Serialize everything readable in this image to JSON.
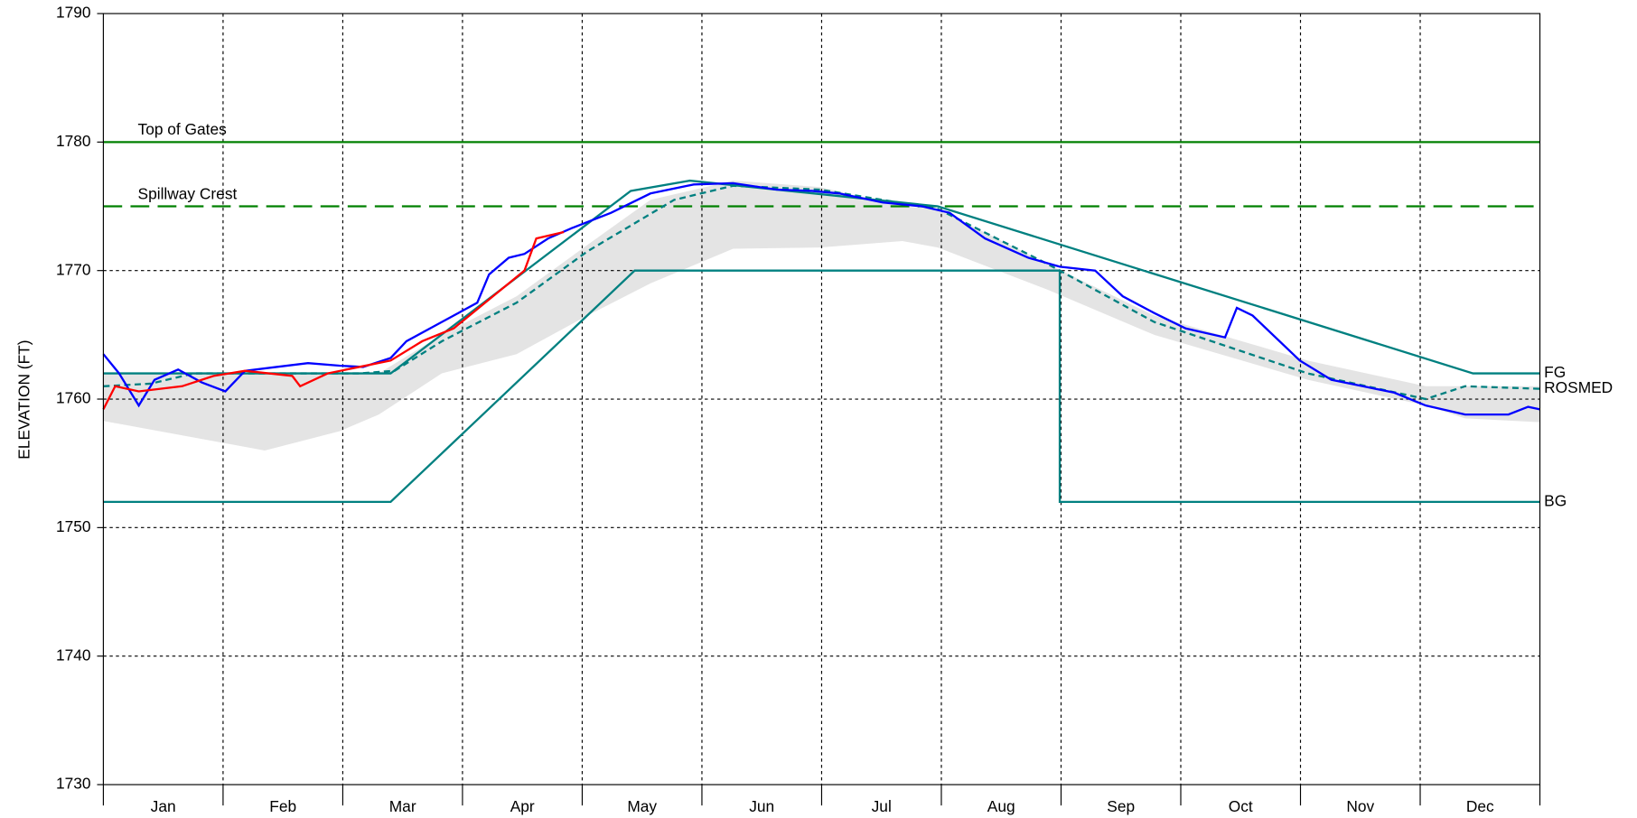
{
  "chart_data": {
    "type": "line",
    "y_label": "ELEVATION (FT)",
    "categories": [
      "Jan",
      "Feb",
      "Mar",
      "Apr",
      "May",
      "Jun",
      "Jul",
      "Aug",
      "Sep",
      "Oct",
      "Nov",
      "Dec"
    ],
    "xlim": [
      0,
      365
    ],
    "ylim": [
      1730,
      1790
    ],
    "yticks": [
      1730,
      1740,
      1750,
      1760,
      1770,
      1780,
      1790
    ],
    "grid": true,
    "reference_lines": [
      {
        "name": "Top of Gates",
        "value": 1780,
        "color": "#008000",
        "dashed": false
      },
      {
        "name": "Spillway Crest",
        "value": 1775,
        "color": "#008000",
        "dashed": true
      }
    ],
    "band": {
      "color": "#e4e4e4",
      "x": [
        0,
        41,
        60,
        70,
        86,
        105,
        123,
        139,
        160,
        182,
        203,
        212,
        240,
        267,
        306,
        336,
        346,
        365
      ],
      "upper": [
        1762,
        1762,
        1762,
        1762,
        1765,
        1768,
        1772,
        1775.5,
        1777,
        1776.5,
        1775,
        1774.8,
        1770.5,
        1766.5,
        1763,
        1761,
        1761,
        1761
      ],
      "lower": [
        1758.3,
        1756,
        1757.5,
        1758.8,
        1762,
        1763.5,
        1766.5,
        1769,
        1771.7,
        1771.8,
        1772.3,
        1771.8,
        1768.5,
        1765,
        1761.5,
        1759.5,
        1758.5,
        1758.2
      ]
    },
    "series": [
      {
        "name": "FG",
        "color": "#008080",
        "dashed": false,
        "x": [
          0,
          73,
          134,
          149,
          212,
          348,
          365
        ],
        "values": [
          1762,
          1762,
          1776.2,
          1777,
          1775,
          1762,
          1762
        ]
      },
      {
        "name": "ROSMED",
        "color": "#008080",
        "dashed": true,
        "x": [
          0,
          12,
          23,
          44,
          65,
          74,
          86,
          105,
          123,
          145,
          160,
          182,
          212,
          240,
          267,
          306,
          336,
          346,
          365
        ],
        "values": [
          1761,
          1761.2,
          1762,
          1762,
          1762,
          1762.2,
          1764.5,
          1767.5,
          1771.5,
          1775.5,
          1776.6,
          1776.3,
          1774.8,
          1770.5,
          1766,
          1762,
          1760,
          1761,
          1760.8
        ]
      },
      {
        "name": "BG",
        "color": "#008080",
        "dashed": false,
        "x": [
          0,
          73,
          135,
          243,
          243,
          365
        ],
        "values": [
          1752,
          1752,
          1770,
          1770,
          1752,
          1752
        ]
      },
      {
        "color": "#0000ff",
        "dashed": false,
        "x": [
          0,
          4,
          9,
          13,
          19,
          25,
          31,
          36,
          44,
          52,
          60,
          66,
          73,
          77,
          86,
          95,
          98,
          103,
          107,
          113,
          119,
          129,
          139,
          150,
          160,
          171,
          180,
          187,
          198,
          208,
          215,
          224,
          235,
          243,
          252,
          259,
          267,
          275,
          285,
          288,
          292,
          304,
          312,
          320,
          328,
          336,
          346,
          357,
          362,
          365
        ],
        "values": [
          1763.5,
          1762,
          1759.5,
          1761.5,
          1762.3,
          1761.3,
          1760.6,
          1762.2,
          1762.5,
          1762.8,
          1762.6,
          1762.5,
          1763.2,
          1764.5,
          1766,
          1767.5,
          1769.7,
          1771,
          1771.3,
          1772.5,
          1773.3,
          1774.5,
          1776,
          1776.7,
          1776.8,
          1776.3,
          1776.2,
          1776,
          1775.3,
          1775,
          1774.5,
          1772.5,
          1771,
          1770.3,
          1770,
          1768,
          1766.7,
          1765.5,
          1764.8,
          1767.1,
          1766.5,
          1763,
          1761.5,
          1761,
          1760.5,
          1759.5,
          1758.8,
          1758.8,
          1759.4,
          1759.2
        ]
      },
      {
        "color": "#ff0000",
        "dashed": false,
        "x": [
          0,
          3,
          9,
          20,
          28,
          36,
          48,
          50,
          57,
          65,
          73,
          81,
          89,
          99,
          107,
          110,
          117
        ],
        "values": [
          1759.2,
          1761,
          1760.6,
          1761,
          1761.8,
          1762.2,
          1761.8,
          1761,
          1762,
          1762.5,
          1763,
          1764.5,
          1765.5,
          1768,
          1770,
          1772.5,
          1773
        ]
      }
    ]
  }
}
